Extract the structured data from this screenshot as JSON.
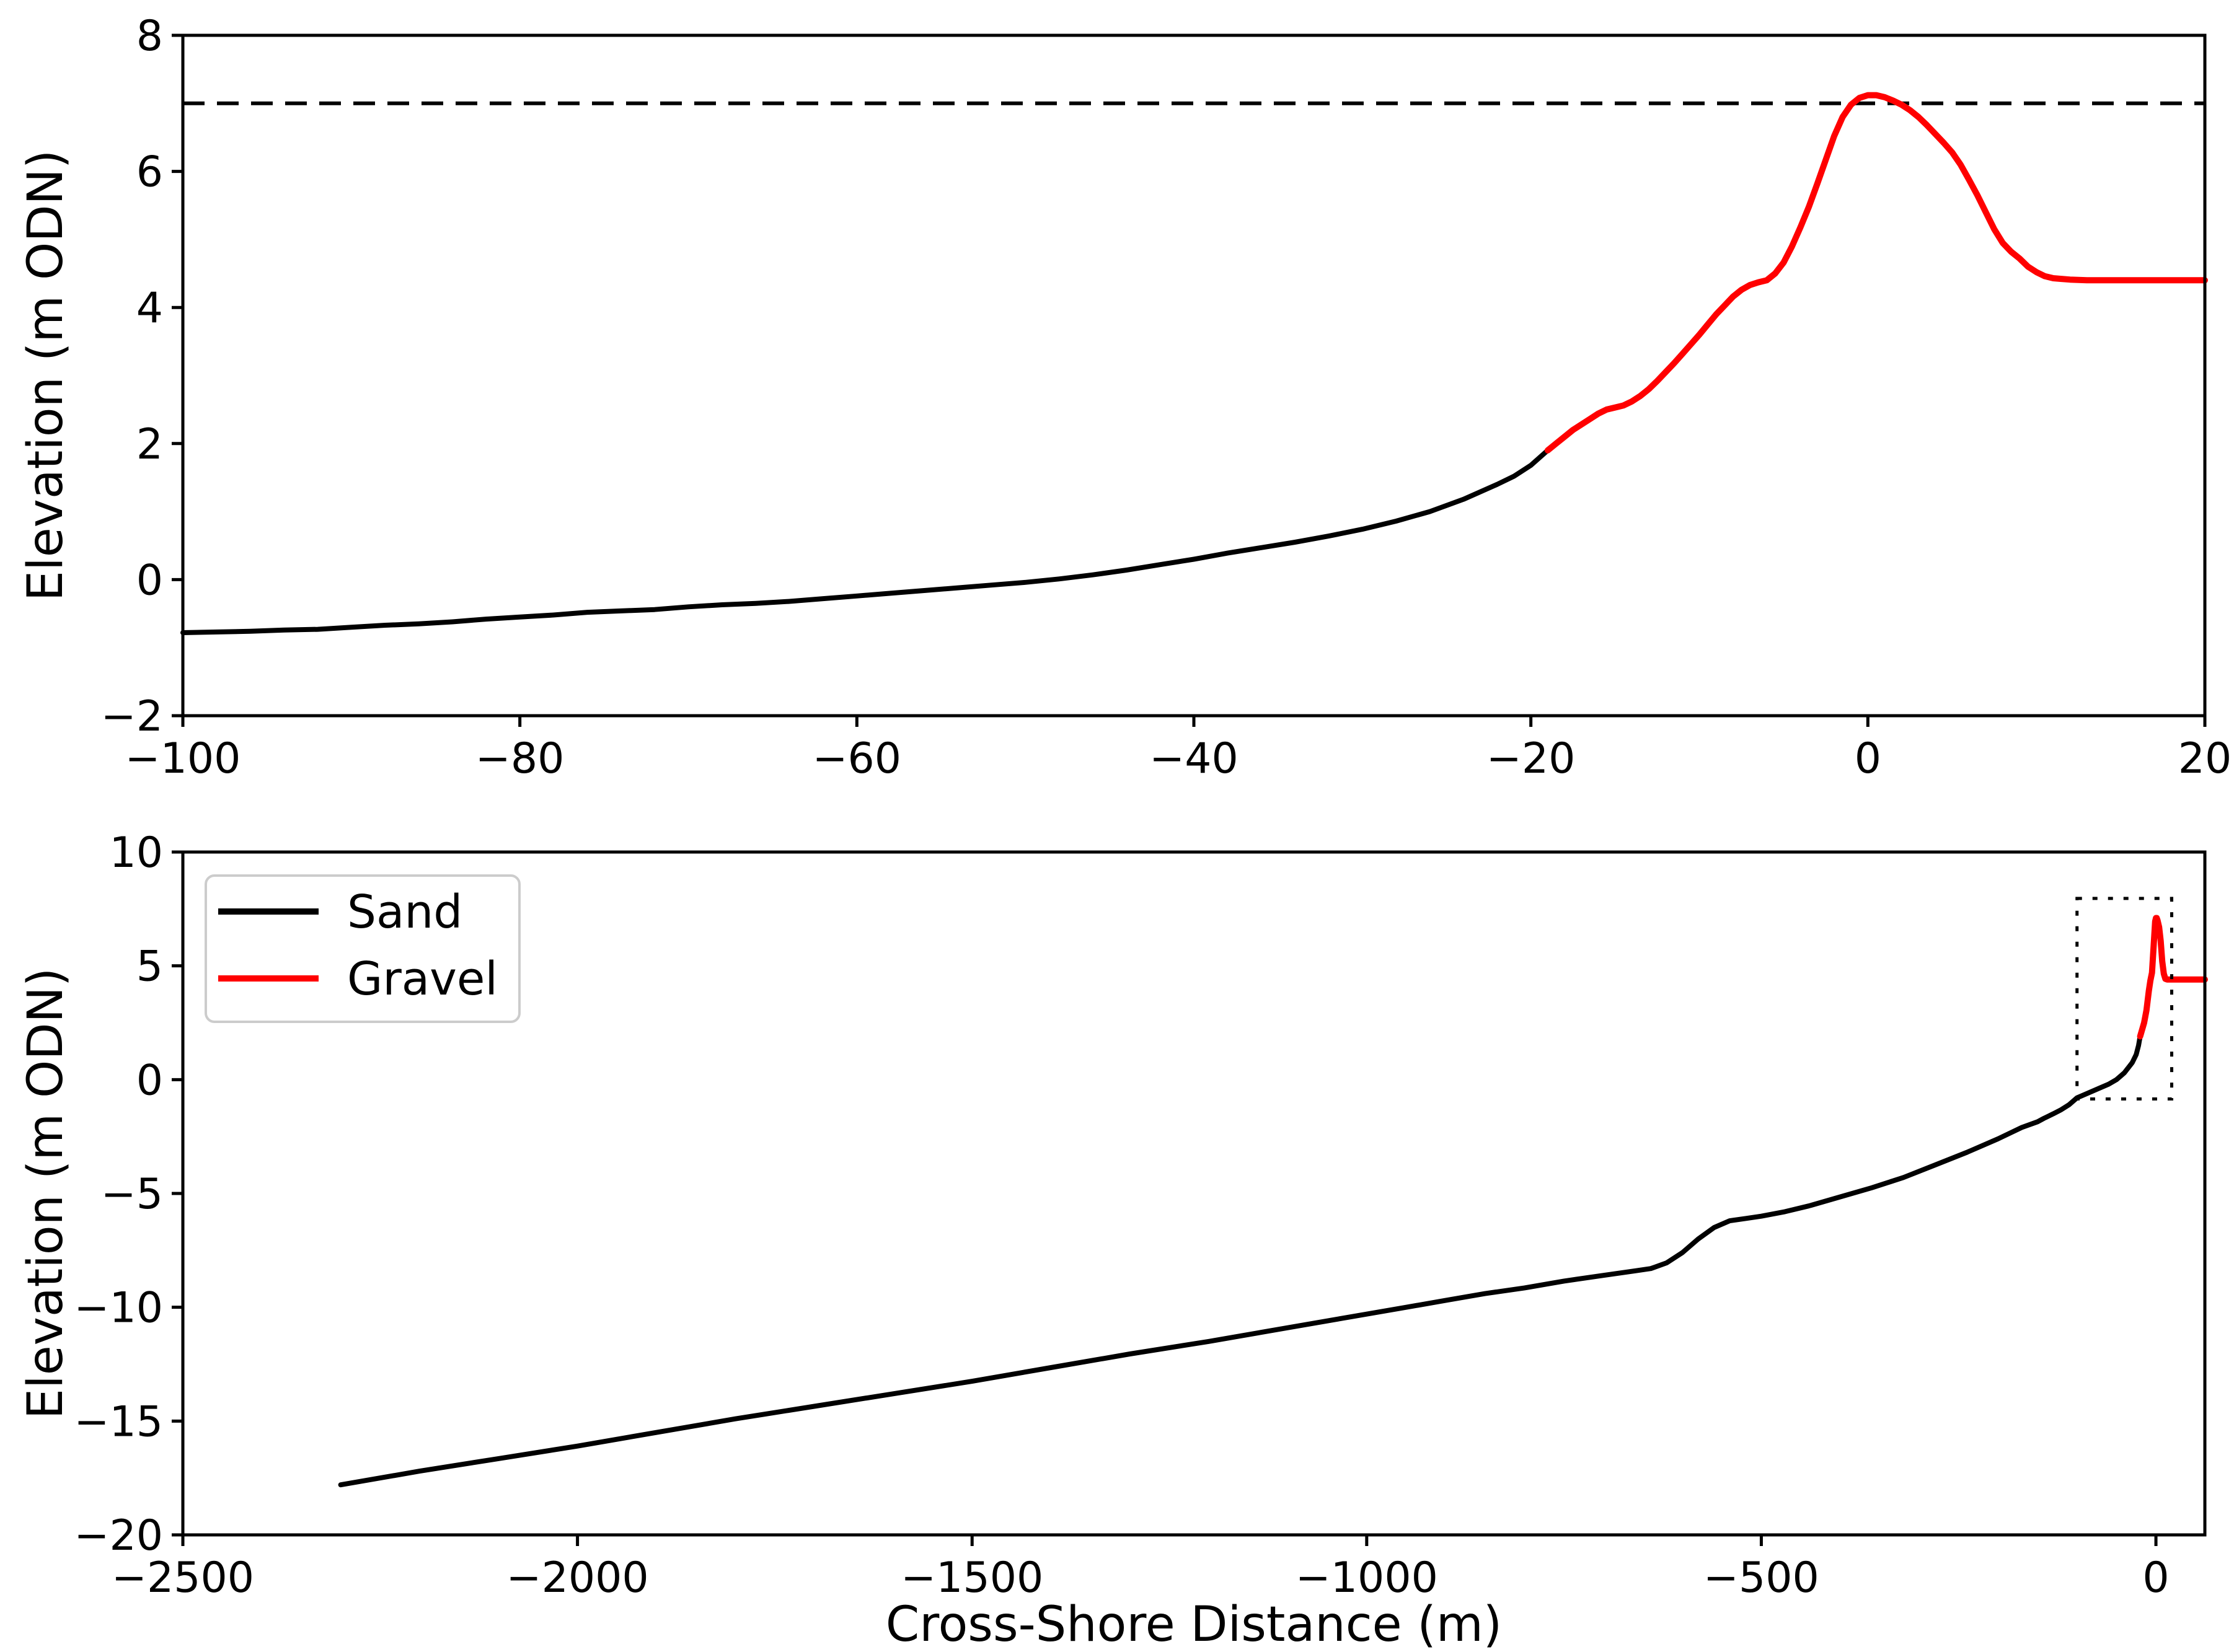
{
  "figure": {
    "background": "#ffffff"
  },
  "colors": {
    "sand": "#000000",
    "gravel": "#ff0000",
    "dashed_reference_line": "#000000",
    "inset_indicator_box": "#000000",
    "legend_border": "#cccccc",
    "legend_background": "#ffffff"
  },
  "legend": {
    "entries": [
      {
        "label": "Sand",
        "color": "#000000"
      },
      {
        "label": "Gravel",
        "color": "#ff0000"
      }
    ]
  },
  "chart_data": [
    {
      "type": "line",
      "title": "",
      "xlabel": "",
      "ylabel": "Elevation (m ODN)",
      "xlim": [
        -100,
        20
      ],
      "ylim": [
        -2,
        8
      ],
      "grid": false,
      "xticks": [
        {
          "v": -100,
          "label": "−100"
        },
        {
          "v": -80,
          "label": "−80"
        },
        {
          "v": -60,
          "label": "−60"
        },
        {
          "v": -40,
          "label": "−40"
        },
        {
          "v": -20,
          "label": "−20"
        },
        {
          "v": 0,
          "label": "0"
        },
        {
          "v": 20,
          "label": "20"
        }
      ],
      "yticks": [
        {
          "v": 8,
          "label": "8"
        },
        {
          "v": 6,
          "label": "6"
        },
        {
          "v": 4,
          "label": "4"
        },
        {
          "v": 2,
          "label": "2"
        },
        {
          "v": 0,
          "label": "0"
        },
        {
          "v": -2,
          "label": "−2"
        }
      ],
      "dashed_hline_y": 7,
      "series": [
        {
          "name": "Sand",
          "color": "#000000",
          "points": [
            [
              -100,
              -0.78
            ],
            [
              -98,
              -0.77
            ],
            [
              -96,
              -0.76
            ],
            [
              -94,
              -0.74
            ],
            [
              -92,
              -0.73
            ],
            [
              -90,
              -0.7
            ],
            [
              -88,
              -0.67
            ],
            [
              -86,
              -0.65
            ],
            [
              -84,
              -0.62
            ],
            [
              -82,
              -0.58
            ],
            [
              -80,
              -0.55
            ],
            [
              -78,
              -0.52
            ],
            [
              -76,
              -0.48
            ],
            [
              -74,
              -0.46
            ],
            [
              -72,
              -0.44
            ],
            [
              -70,
              -0.4
            ],
            [
              -68,
              -0.37
            ],
            [
              -66,
              -0.35
            ],
            [
              -64,
              -0.32
            ],
            [
              -62,
              -0.28
            ],
            [
              -60,
              -0.24
            ],
            [
              -58,
              -0.2
            ],
            [
              -56,
              -0.16
            ],
            [
              -54,
              -0.12
            ],
            [
              -52,
              -0.08
            ],
            [
              -50,
              -0.04
            ],
            [
              -48,
              0.01
            ],
            [
              -46,
              0.07
            ],
            [
              -44,
              0.14
            ],
            [
              -42,
              0.22
            ],
            [
              -40,
              0.3
            ],
            [
              -38,
              0.39
            ],
            [
              -36,
              0.47
            ],
            [
              -34,
              0.55
            ],
            [
              -32,
              0.64
            ],
            [
              -30,
              0.74
            ],
            [
              -28,
              0.86
            ],
            [
              -26,
              1.0
            ],
            [
              -24,
              1.18
            ],
            [
              -22,
              1.4
            ],
            [
              -21,
              1.52
            ],
            [
              -20,
              1.68
            ],
            [
              -19,
              1.9
            ]
          ]
        },
        {
          "name": "Gravel",
          "color": "#ff0000",
          "points": [
            [
              -19,
              1.9
            ],
            [
              -18.5,
              2.0
            ],
            [
              -18,
              2.1
            ],
            [
              -17.5,
              2.2
            ],
            [
              -17,
              2.28
            ],
            [
              -16.5,
              2.36
            ],
            [
              -16,
              2.44
            ],
            [
              -15.5,
              2.5
            ],
            [
              -15,
              2.53
            ],
            [
              -14.5,
              2.56
            ],
            [
              -14,
              2.62
            ],
            [
              -13.5,
              2.7
            ],
            [
              -13,
              2.8
            ],
            [
              -12.5,
              2.92
            ],
            [
              -12,
              3.05
            ],
            [
              -11.5,
              3.18
            ],
            [
              -11,
              3.32
            ],
            [
              -10.5,
              3.46
            ],
            [
              -10,
              3.6
            ],
            [
              -9.5,
              3.75
            ],
            [
              -9,
              3.9
            ],
            [
              -8.5,
              4.03
            ],
            [
              -8,
              4.16
            ],
            [
              -7.5,
              4.26
            ],
            [
              -7,
              4.33
            ],
            [
              -6.5,
              4.37
            ],
            [
              -6,
              4.4
            ],
            [
              -5.5,
              4.5
            ],
            [
              -5,
              4.66
            ],
            [
              -4.5,
              4.9
            ],
            [
              -4,
              5.18
            ],
            [
              -3.5,
              5.48
            ],
            [
              -3,
              5.82
            ],
            [
              -2.5,
              6.17
            ],
            [
              -2,
              6.52
            ],
            [
              -1.5,
              6.8
            ],
            [
              -1,
              6.98
            ],
            [
              -0.5,
              7.08
            ],
            [
              0,
              7.12
            ],
            [
              0.5,
              7.12
            ],
            [
              1,
              7.09
            ],
            [
              1.5,
              7.04
            ],
            [
              2,
              6.98
            ],
            [
              2.5,
              6.9
            ],
            [
              3,
              6.8
            ],
            [
              3.5,
              6.68
            ],
            [
              4,
              6.55
            ],
            [
              4.5,
              6.42
            ],
            [
              5,
              6.28
            ],
            [
              5.5,
              6.1
            ],
            [
              6,
              5.88
            ],
            [
              6.5,
              5.65
            ],
            [
              7,
              5.4
            ],
            [
              7.5,
              5.15
            ],
            [
              8,
              4.95
            ],
            [
              8.5,
              4.82
            ],
            [
              9,
              4.72
            ],
            [
              9.5,
              4.6
            ],
            [
              10,
              4.52
            ],
            [
              10.5,
              4.46
            ],
            [
              11,
              4.43
            ],
            [
              11.5,
              4.42
            ],
            [
              12,
              4.41
            ],
            [
              13,
              4.4
            ],
            [
              14,
              4.4
            ],
            [
              16,
              4.4
            ],
            [
              18,
              4.4
            ],
            [
              20,
              4.4
            ]
          ]
        }
      ]
    },
    {
      "type": "line",
      "title": "",
      "xlabel": "Cross-Shore Distance (m)",
      "ylabel": "Elevation (m ODN)",
      "xlim": [
        -2500,
        62
      ],
      "ylim": [
        -20,
        10
      ],
      "grid": false,
      "legend_position": "upper left",
      "xticks": [
        {
          "v": -2500,
          "label": "−2500"
        },
        {
          "v": -2000,
          "label": "−2000"
        },
        {
          "v": -1500,
          "label": "−1500"
        },
        {
          "v": -1000,
          "label": "−1000"
        },
        {
          "v": -500,
          "label": "−500"
        },
        {
          "v": 0,
          "label": "0"
        }
      ],
      "yticks": [
        {
          "v": 10,
          "label": "10"
        },
        {
          "v": 5,
          "label": "5"
        },
        {
          "v": 0,
          "label": "0"
        },
        {
          "v": -5,
          "label": "−5"
        },
        {
          "v": -10,
          "label": "−10"
        },
        {
          "v": -15,
          "label": "−15"
        },
        {
          "v": -20,
          "label": "−20"
        }
      ],
      "inset_indicator_box": {
        "x0": -100,
        "x1": 20,
        "y0": -0.85,
        "y1": 7.96
      },
      "series": [
        {
          "name": "Sand",
          "color": "#000000",
          "points": [
            [
              -2300,
              -17.8
            ],
            [
              -2200,
              -17.2
            ],
            [
              -2100,
              -16.65
            ],
            [
              -2000,
              -16.1
            ],
            [
              -1900,
              -15.5
            ],
            [
              -1800,
              -14.9
            ],
            [
              -1700,
              -14.35
            ],
            [
              -1600,
              -13.8
            ],
            [
              -1500,
              -13.25
            ],
            [
              -1400,
              -12.65
            ],
            [
              -1300,
              -12.05
            ],
            [
              -1200,
              -11.5
            ],
            [
              -1100,
              -10.9
            ],
            [
              -1000,
              -10.3
            ],
            [
              -950,
              -10.0
            ],
            [
              -900,
              -9.7
            ],
            [
              -850,
              -9.4
            ],
            [
              -800,
              -9.15
            ],
            [
              -750,
              -8.85
            ],
            [
              -700,
              -8.6
            ],
            [
              -660,
              -8.4
            ],
            [
              -640,
              -8.3
            ],
            [
              -620,
              -8.05
            ],
            [
              -600,
              -7.6
            ],
            [
              -580,
              -7.0
            ],
            [
              -560,
              -6.5
            ],
            [
              -540,
              -6.2
            ],
            [
              -520,
              -6.1
            ],
            [
              -500,
              -6.0
            ],
            [
              -470,
              -5.8
            ],
            [
              -440,
              -5.55
            ],
            [
              -400,
              -5.15
            ],
            [
              -360,
              -4.75
            ],
            [
              -320,
              -4.3
            ],
            [
              -280,
              -3.75
            ],
            [
              -240,
              -3.2
            ],
            [
              -200,
              -2.6
            ],
            [
              -170,
              -2.1
            ],
            [
              -150,
              -1.85
            ],
            [
              -142,
              -1.7
            ],
            [
              -130,
              -1.5
            ],
            [
              -120,
              -1.32
            ],
            [
              -110,
              -1.1
            ],
            [
              -100,
              -0.8
            ],
            [
              -90,
              -0.65
            ],
            [
              -80,
              -0.5
            ],
            [
              -70,
              -0.35
            ],
            [
              -60,
              -0.2
            ],
            [
              -50,
              0.0
            ],
            [
              -40,
              0.3
            ],
            [
              -30,
              0.75
            ],
            [
              -25,
              1.1
            ],
            [
              -22,
              1.5
            ],
            [
              -20,
              1.9
            ]
          ]
        },
        {
          "name": "Gravel",
          "color": "#ff0000",
          "points": [
            [
              -20,
              1.9
            ],
            [
              -15,
              2.5
            ],
            [
              -12,
              3.05
            ],
            [
              -9,
              3.9
            ],
            [
              -7,
              4.35
            ],
            [
              -5,
              4.7
            ],
            [
              -3,
              5.8
            ],
            [
              -1,
              6.95
            ],
            [
              0,
              7.1
            ],
            [
              1,
              7.1
            ],
            [
              2,
              7.0
            ],
            [
              4,
              6.7
            ],
            [
              6,
              6.1
            ],
            [
              8,
              5.2
            ],
            [
              10,
              4.65
            ],
            [
              12,
              4.43
            ],
            [
              14,
              4.4
            ],
            [
              20,
              4.4
            ],
            [
              40,
              4.4
            ],
            [
              62,
              4.4
            ]
          ]
        }
      ]
    }
  ]
}
